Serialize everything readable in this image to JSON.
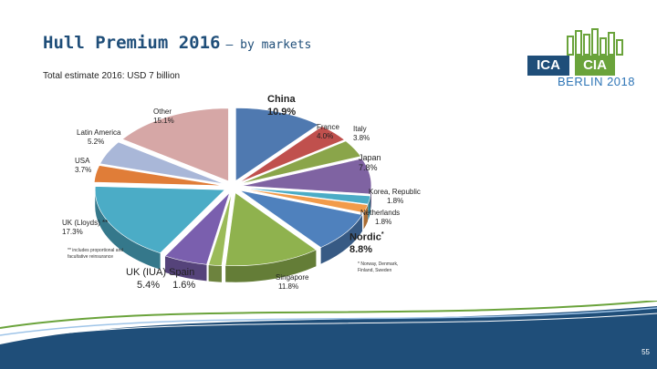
{
  "header": {
    "title": "Hull Premium 2016",
    "title_suffix": "– by markets",
    "subtitle": "Total estimate 2016: USD 7 billion"
  },
  "logo": {
    "left": "ICA",
    "right": "CIA",
    "city": "BERLIN 2018"
  },
  "footnotes": {
    "uk_lloyds": "** includes proportional and facultative reinsurance",
    "nordic": "* Norway, Denmark, Finland, Sweden"
  },
  "page_number": "55",
  "colors": {
    "brand_blue": "#1f4e79",
    "brand_green": "#6aa33b"
  },
  "chart_data": {
    "type": "pie",
    "style": "3d-exploded",
    "slices": [
      {
        "label": "China",
        "value": 10.9,
        "display": "10.9%",
        "color": "#4f79b0"
      },
      {
        "label": "France",
        "value": 4.0,
        "display": "4.0%",
        "color": "#c0504d"
      },
      {
        "label": "Italy",
        "value": 3.8,
        "display": "3.8%",
        "color": "#8aa54a"
      },
      {
        "label": "Japan",
        "value": 7.8,
        "display": "7.8%",
        "color": "#7f63a2"
      },
      {
        "label": "Korea, Republic",
        "value": 1.8,
        "display": "1.8%",
        "color": "#4bacc6"
      },
      {
        "label": "Netherlands",
        "value": 1.8,
        "display": "1.8%",
        "color": "#f29b4a"
      },
      {
        "label": "Nordic",
        "marker": "*",
        "value": 8.8,
        "display": "8.8%",
        "color": "#4f81bd"
      },
      {
        "label": "Singapore",
        "value": 11.8,
        "display": "11.8%",
        "color": "#8fb24e"
      },
      {
        "label": "Spain",
        "value": 1.6,
        "display": "1.6%",
        "color": "#9bbb59"
      },
      {
        "label": "UK (IUA)",
        "value": 5.4,
        "display": "5.4%",
        "color": "#7a5fae"
      },
      {
        "label": "UK (Lloyds)",
        "marker": "**",
        "value": 17.3,
        "display": "17.3%",
        "color": "#4bacc6"
      },
      {
        "label": "USA",
        "value": 3.7,
        "display": "3.7%",
        "color": "#e07d38"
      },
      {
        "label": "Latin America",
        "value": 5.2,
        "display": "5.2%",
        "color": "#a9b7d8"
      },
      {
        "label": "Other",
        "value": 15.1,
        "display": "15.1%",
        "color": "#d6a7a6"
      }
    ],
    "labels": {
      "uk_iua_spain_header": "UK (IUA) Spain"
    }
  }
}
